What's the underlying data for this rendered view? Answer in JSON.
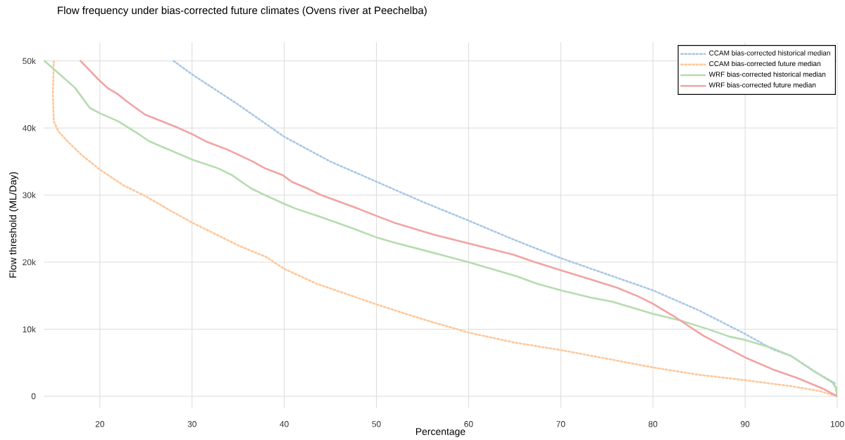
{
  "chart_data": {
    "type": "line",
    "title": "Flow frequency under bias-corrected future climates (Ovens river at Peechelba)",
    "xlabel": "Percentage",
    "ylabel": "Flow threshold (ML/Day)",
    "xlim": [
      13.9,
      100
    ],
    "ylim": [
      -1700,
      52800
    ],
    "xticks": [
      20,
      30,
      40,
      50,
      60,
      70,
      80,
      90,
      100
    ],
    "yticks": [
      0,
      {
        "value": 10000,
        "label": "10k"
      },
      {
        "value": 20000,
        "label": "20k"
      },
      {
        "value": 30000,
        "label": "30k"
      },
      {
        "value": 40000,
        "label": "40k"
      },
      {
        "value": 50000,
        "label": "50k"
      }
    ],
    "grid": true,
    "legend": "top right",
    "series": [
      {
        "name": "CCAM bias-corrected historical median",
        "color": "#a9c7e6",
        "line_style": "dotted",
        "x": [
          28,
          30,
          35,
          40,
          45,
          50,
          55,
          60,
          65,
          70,
          75,
          80,
          85,
          90,
          93,
          95,
          98,
          99.7,
          100
        ],
        "values": [
          50000,
          48000,
          43500,
          38700,
          35000,
          32000,
          29000,
          26200,
          23300,
          20600,
          18200,
          15800,
          12800,
          9300,
          7000,
          6000,
          3300,
          2000,
          0
        ]
      },
      {
        "name": "CCAM bias-corrected future median",
        "color": "#ffc79a",
        "line_style": "dotted",
        "x": [
          15,
          14.9,
          15,
          15.5,
          16.5,
          18,
          20,
          22.5,
          25,
          27.5,
          30,
          35,
          38,
          40,
          43.5,
          50,
          55,
          60,
          65,
          70,
          75,
          80,
          85,
          90,
          95,
          98,
          100
        ],
        "values": [
          50000,
          45000,
          41000,
          39500,
          38000,
          36000,
          33800,
          31500,
          29800,
          27800,
          25900,
          22500,
          20800,
          19000,
          16800,
          13700,
          11500,
          9500,
          8000,
          6900,
          5600,
          4300,
          3200,
          2400,
          1500,
          800,
          0
        ]
      },
      {
        "name": "WRF bias-corrected historical median",
        "color": "#b6dcb0",
        "line_style": "solid",
        "x": [
          14,
          17.3,
          18.9,
          20,
          22,
          24.2,
          25.4,
          30,
          32.8,
          34.3,
          36.4,
          37.9,
          40,
          41.2,
          43.8,
          47.3,
          50,
          51.7,
          54.5,
          57.5,
          60,
          65.2,
          67.4,
          70,
          73.3,
          75.6,
          80,
          83,
          86,
          88.3,
          90,
          92.9,
          95,
          97.3,
          99.5,
          99.9,
          100
        ],
        "values": [
          50000,
          46000,
          43000,
          42200,
          41000,
          39100,
          38000,
          35300,
          34000,
          33000,
          31000,
          30000,
          28700,
          28000,
          26800,
          25100,
          23700,
          23000,
          22000,
          20900,
          20000,
          17900,
          16800,
          15800,
          14700,
          14100,
          12300,
          11300,
          10000,
          8900,
          8400,
          7200,
          6000,
          3900,
          2000,
          1200,
          0
        ]
      },
      {
        "name": "WRF bias-corrected future median",
        "color": "#f2a3a3",
        "line_style": "solid",
        "x": [
          17.9,
          19.8,
          20.8,
          22,
          22.9,
          24.9,
          28.2,
          30,
          31.5,
          33.8,
          36.6,
          37.9,
          39.8,
          40.8,
          42.5,
          44,
          47.6,
          50,
          51.9,
          56.2,
          60,
          64.9,
          67.2,
          70,
          73.3,
          76.1,
          78.4,
          80,
          81.2,
          82.2,
          85.5,
          90,
          93.2,
          95.7,
          98.5,
          100
        ],
        "values": [
          50000,
          47300,
          46000,
          45000,
          44000,
          42000,
          40200,
          39100,
          38000,
          36800,
          35000,
          34000,
          33000,
          32000,
          31000,
          30000,
          28200,
          26900,
          25900,
          24100,
          22800,
          21100,
          20000,
          18800,
          17400,
          16200,
          14900,
          13800,
          12800,
          12000,
          9000,
          5800,
          3900,
          2700,
          1100,
          0
        ]
      }
    ]
  }
}
